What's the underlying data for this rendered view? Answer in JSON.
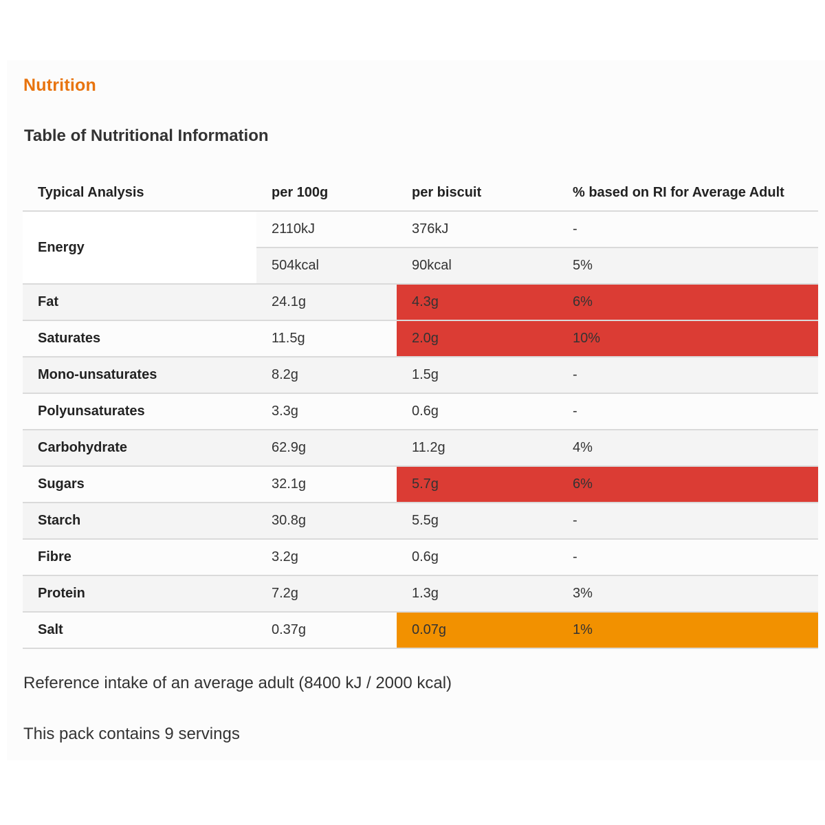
{
  "section_title": "Nutrition",
  "table_title": "Table of Nutritional Information",
  "columns": [
    "Typical Analysis",
    "per 100g",
    "per biscuit",
    "% based on RI for Average Adult"
  ],
  "energy": {
    "label": "Energy",
    "kj": {
      "per100g": "2110kJ",
      "perBiscuit": "376kJ",
      "ri": "-"
    },
    "kcal": {
      "per100g": "504kcal",
      "perBiscuit": "90kcal",
      "ri": "5%"
    }
  },
  "rows": [
    {
      "label": "Fat",
      "per100g": "24.1g",
      "perBiscuit": "4.3g",
      "ri": "6%",
      "level": "high"
    },
    {
      "label": "Saturates",
      "per100g": "11.5g",
      "perBiscuit": "2.0g",
      "ri": "10%",
      "level": "high"
    },
    {
      "label": "Mono-unsaturates",
      "per100g": "8.2g",
      "perBiscuit": "1.5g",
      "ri": "-",
      "level": ""
    },
    {
      "label": "Polyunsaturates",
      "per100g": "3.3g",
      "perBiscuit": "0.6g",
      "ri": "-",
      "level": ""
    },
    {
      "label": "Carbohydrate",
      "per100g": "62.9g",
      "perBiscuit": "11.2g",
      "ri": "4%",
      "level": ""
    },
    {
      "label": "Sugars",
      "per100g": "32.1g",
      "perBiscuit": "5.7g",
      "ri": "6%",
      "level": "high"
    },
    {
      "label": "Starch",
      "per100g": "30.8g",
      "perBiscuit": "5.5g",
      "ri": "-",
      "level": ""
    },
    {
      "label": "Fibre",
      "per100g": "3.2g",
      "perBiscuit": "0.6g",
      "ri": "-",
      "level": ""
    },
    {
      "label": "Protein",
      "per100g": "7.2g",
      "perBiscuit": "1.3g",
      "ri": "3%",
      "level": ""
    },
    {
      "label": "Salt",
      "per100g": "0.37g",
      "perBiscuit": "0.07g",
      "ri": "1%",
      "level": "medium"
    }
  ],
  "colors": {
    "high": "#db3c34",
    "medium": "#f29100",
    "accent": "#e8740f"
  },
  "footnotes": {
    "reference": "Reference intake of an average adult (8400 kJ / 2000 kcal)",
    "servings": "This pack contains 9 servings"
  }
}
